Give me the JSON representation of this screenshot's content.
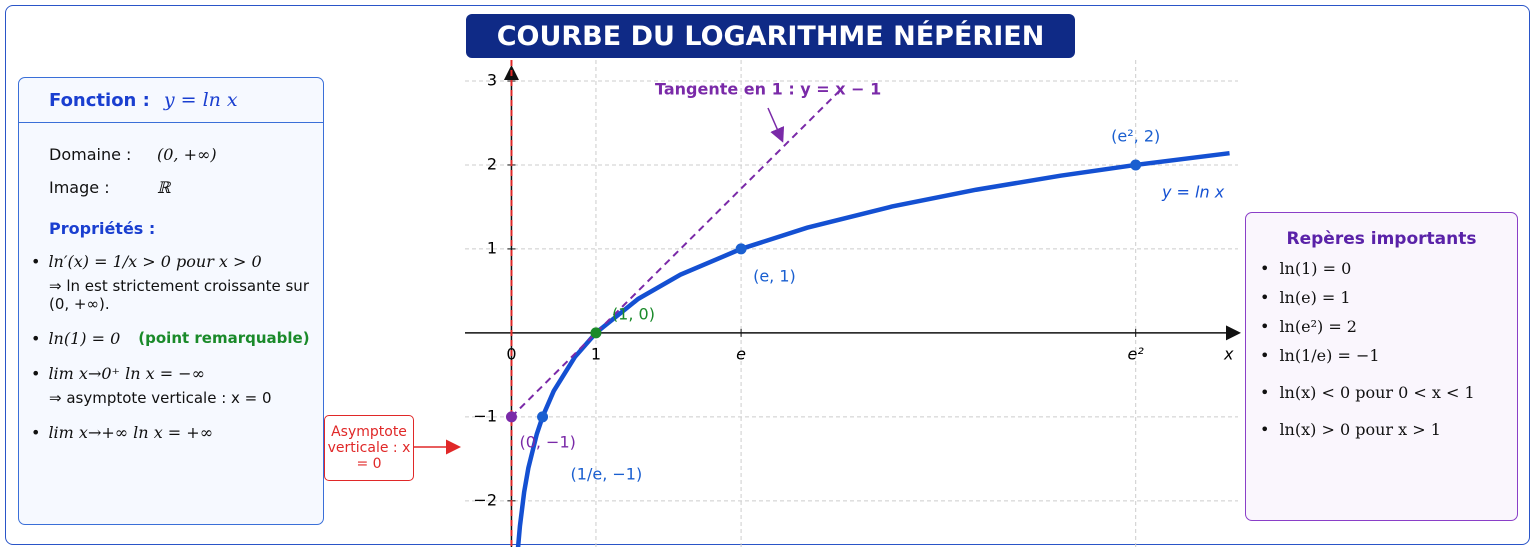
{
  "title": "COURBE DU LOGARITHME NÉPÉRIEN",
  "left_panel": {
    "header_label": "Fonction :",
    "header_formula": "y = ln x",
    "rows": [
      {
        "label": "Domaine :",
        "value": "(0, +∞)"
      },
      {
        "label": "Image :",
        "value": "ℝ"
      }
    ],
    "properties_title": "Propriétés :",
    "properties": [
      {
        "text": "ln′(x) = 1/x > 0  pour  x > 0",
        "detail": "⇒ ln est strictement croissante sur (0, +∞)."
      },
      {
        "text": "ln(1) = 0",
        "note": "(point remarquable)"
      },
      {
        "text": "lim x→0⁺  ln x = −∞",
        "detail": "⇒ asymptote verticale :  x = 0"
      },
      {
        "text": "lim x→+∞  ln x = +∞"
      }
    ]
  },
  "right_panel": {
    "title": "Repères importants",
    "items": [
      "ln(1) = 0",
      "ln(e) = 1",
      "ln(e²) = 2",
      "ln(1/e) = −1",
      "ln(x) < 0  pour  0 < x < 1",
      "ln(x) > 0  pour  x > 1"
    ]
  },
  "asymptote_note": "Asymptote verticale : x = 0",
  "chart_data": {
    "type": "line",
    "x_label": "x",
    "xlim": [
      -0.55,
      8.6
    ],
    "ylim": [
      -2.55,
      3.25
    ],
    "xticks": [
      0,
      1,
      {
        "value": 2.718,
        "label": "e"
      },
      {
        "value": 7.389,
        "label": "e²"
      }
    ],
    "yticks": [
      {
        "value": -2,
        "label": "−2"
      },
      {
        "value": -1,
        "label": "−1"
      },
      1,
      2,
      3
    ],
    "grid": true,
    "asymptote": {
      "x": 0,
      "color": "#e02828"
    },
    "series": [
      {
        "name": "y = ln x",
        "color": "#1450d2",
        "x": [
          0.077,
          0.1,
          0.15,
          0.2,
          0.3,
          0.368,
          0.5,
          0.75,
          1,
          1.5,
          2,
          2.718,
          3.5,
          4.5,
          5.5,
          6.5,
          7.389,
          8.5
        ],
        "values": [
          -2.564,
          -2.303,
          -1.897,
          -1.609,
          -1.204,
          -1.0,
          -0.693,
          -0.288,
          0,
          0.405,
          0.693,
          1.0,
          1.253,
          1.504,
          1.705,
          1.872,
          2.0,
          2.14
        ]
      },
      {
        "name": "Tangente en 1 : y = x − 1",
        "color": "#7a2aa8",
        "dashed": true,
        "x": [
          0,
          3.9
        ],
        "values": [
          -1,
          2.9
        ]
      }
    ],
    "points": [
      {
        "x": 1,
        "y": 0,
        "label": "(1, 0)",
        "color": "#1a8a2a"
      },
      {
        "x": 2.718,
        "y": 1,
        "label": "(e, 1)",
        "color": "#1a5fd0"
      },
      {
        "x": 7.389,
        "y": 2,
        "label": "(e², 2)",
        "color": "#1a5fd0"
      },
      {
        "x": 0.368,
        "y": -1,
        "label": "(1/e, −1)",
        "color": "#1a5fd0"
      },
      {
        "x": 0,
        "y": -1,
        "label": "(0, −1)",
        "color": "#7a2aa8"
      }
    ]
  }
}
